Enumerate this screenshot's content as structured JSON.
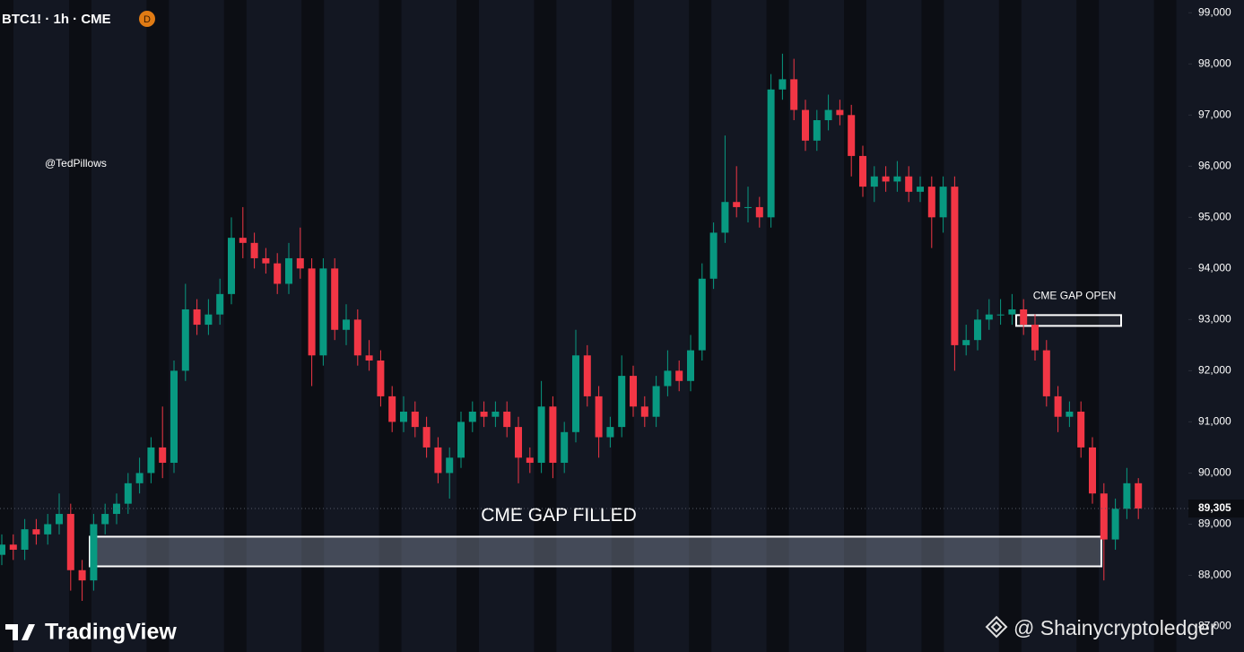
{
  "chart_data": {
    "type": "candlestick",
    "title": "BTC1! · 1h · CME",
    "badge": "D",
    "author": "@TedPillows",
    "branding": "TradingView",
    "watermark": "@ Shainycryptoledger",
    "up_color": "#089981",
    "down_color": "#f23645",
    "ylim": [
      86500,
      99250
    ],
    "yticks": [
      {
        "value": 87000,
        "label": "87,000"
      },
      {
        "value": 88000,
        "label": "88,000"
      },
      {
        "value": 89000,
        "label": "89,000"
      },
      {
        "value": 90000,
        "label": "90,000"
      },
      {
        "value": 91000,
        "label": "91,000"
      },
      {
        "value": 92000,
        "label": "92,000"
      },
      {
        "value": 93000,
        "label": "93,000"
      },
      {
        "value": 94000,
        "label": "94,000"
      },
      {
        "value": 95000,
        "label": "95,000"
      },
      {
        "value": 96000,
        "label": "96,000"
      },
      {
        "value": 97000,
        "label": "97,000"
      },
      {
        "value": 98000,
        "label": "98,000"
      },
      {
        "value": 99000,
        "label": "99,000"
      }
    ],
    "last_price": {
      "value": 89305,
      "label": "89,305"
    },
    "zones": [
      {
        "label": "CME GAP FILLED",
        "low": 88175,
        "high": 88755
      },
      {
        "label": "CME GAP OPEN",
        "low": 92877,
        "high": 93088
      }
    ],
    "open": [
      88400,
      88600,
      88500,
      88900,
      88800,
      89000,
      89200,
      88100,
      87900,
      89000,
      89200,
      89400,
      89800,
      90000,
      90500,
      90200,
      92000,
      93200,
      92900,
      93100,
      93500,
      94600,
      94500,
      94200,
      94100,
      93700,
      94200,
      94000,
      92300,
      94000,
      92800,
      93000,
      92300,
      92200,
      91500,
      91000,
      91200,
      90900,
      90500,
      90000,
      90300,
      91000,
      91200,
      91100,
      91200,
      90900,
      90300,
      90200,
      91300,
      90200,
      90800,
      92300,
      91500,
      90700,
      90900,
      91900,
      91300,
      91100,
      91700,
      92000,
      91800,
      92400,
      93800,
      94700,
      95300,
      95200,
      95200,
      95000,
      97500,
      97700,
      97100,
      96500,
      96900,
      97100,
      97000,
      96200,
      95600,
      95800,
      95700,
      95800,
      95500,
      95600,
      95000,
      95600,
      92500,
      92600,
      93000,
      93100,
      93100,
      93200,
      92900,
      92400,
      91500,
      91100,
      91200,
      90500,
      89600,
      88700,
      89300,
      89800
    ],
    "high": [
      88800,
      88800,
      89100,
      89100,
      89200,
      89600,
      89400,
      88300,
      89200,
      89400,
      89600,
      90000,
      90300,
      90700,
      91300,
      92200,
      93700,
      93400,
      93400,
      93800,
      95000,
      95200,
      94700,
      94400,
      94300,
      94500,
      94800,
      94200,
      94200,
      94200,
      93300,
      93200,
      92600,
      92400,
      91700,
      91500,
      91400,
      91100,
      90700,
      90500,
      91200,
      91400,
      91400,
      91400,
      91400,
      91100,
      90500,
      91800,
      91500,
      91000,
      92800,
      92500,
      91700,
      91100,
      92300,
      92100,
      91500,
      91900,
      92400,
      92200,
      92700,
      94100,
      94900,
      96600,
      96000,
      95600,
      95400,
      97800,
      98200,
      98100,
      97300,
      97100,
      97400,
      97300,
      97200,
      96400,
      96000,
      96000,
      96100,
      96000,
      95800,
      95800,
      95800,
      95800,
      92900,
      93200,
      93400,
      93400,
      93500,
      93400,
      93100,
      92600,
      91700,
      91400,
      91400,
      90700,
      89800,
      89500,
      90100,
      89900
    ],
    "low": [
      88200,
      88300,
      88300,
      88600,
      88600,
      88800,
      87700,
      87500,
      87700,
      88800,
      89000,
      89200,
      89600,
      89800,
      89900,
      90000,
      91800,
      92700,
      92700,
      92900,
      93300,
      94200,
      94000,
      93900,
      93500,
      93500,
      93800,
      91700,
      92100,
      92600,
      92500,
      92100,
      92000,
      91300,
      90800,
      90800,
      90700,
      90300,
      89800,
      89500,
      90100,
      90800,
      90900,
      90900,
      90700,
      89800,
      90000,
      90000,
      89900,
      90000,
      90600,
      91300,
      90300,
      90500,
      90700,
      91100,
      90900,
      90900,
      91500,
      91600,
      91600,
      92200,
      93600,
      94500,
      95000,
      94900,
      94800,
      94800,
      97300,
      96900,
      96300,
      96300,
      96700,
      96800,
      95800,
      95400,
      95300,
      95500,
      95500,
      95300,
      95300,
      94400,
      94700,
      92000,
      92300,
      92400,
      92800,
      92900,
      92900,
      92700,
      92200,
      91300,
      90800,
      90900,
      90300,
      89400,
      87900,
      88500,
      89100,
      89100
    ],
    "close": [
      88600,
      88500,
      88900,
      88800,
      89000,
      89200,
      88100,
      87900,
      89000,
      89200,
      89400,
      89800,
      90000,
      90500,
      90200,
      92000,
      93200,
      92900,
      93100,
      93500,
      94600,
      94500,
      94200,
      94100,
      93700,
      94200,
      94000,
      92300,
      94000,
      92800,
      93000,
      92300,
      92200,
      91500,
      91000,
      91200,
      90900,
      90500,
      90000,
      90300,
      91000,
      91200,
      91100,
      91200,
      90900,
      90300,
      90200,
      91300,
      90200,
      90800,
      92300,
      91500,
      90700,
      90900,
      91900,
      91300,
      91100,
      91700,
      92000,
      91800,
      92400,
      93800,
      94700,
      95300,
      95200,
      95200,
      95000,
      97500,
      97700,
      97100,
      96500,
      96900,
      97100,
      97000,
      96200,
      95600,
      95800,
      95700,
      95800,
      95500,
      95600,
      95000,
      95600,
      92500,
      92600,
      93000,
      93100,
      93100,
      93200,
      92900,
      92400,
      91500,
      91100,
      91200,
      90500,
      89600,
      88700,
      89300,
      89800,
      89305
    ]
  }
}
